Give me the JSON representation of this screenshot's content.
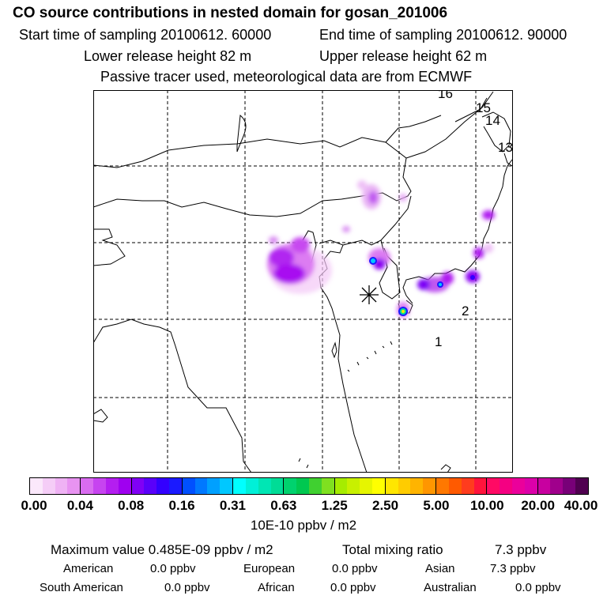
{
  "header": {
    "title": "CO  source contributions in nested domain for gosan_201006",
    "start_label": "Start time of sampling 20100612. 60000",
    "end_label": "End time of sampling 20100612. 90000",
    "lower_label": "Lower release height   82 m",
    "upper_label": "Upper release height   62 m",
    "note": "Passive tracer used, meteorological data are from ECMWF"
  },
  "map": {
    "region_labels": [
      "16",
      "15",
      "14",
      "13",
      "2",
      "1"
    ],
    "receptor_marker": "asterisk-icon"
  },
  "colorbar": {
    "ticks": [
      "0.00",
      "0.04",
      "0.08",
      "0.16",
      "0.31",
      "0.63",
      "1.25",
      "2.50",
      "5.00",
      "10.00",
      "20.00",
      "40.00"
    ],
    "unit": "10E-10 ppbv / m2",
    "colors": [
      [
        "#fbe8fb",
        "#f5cdf7",
        "#efb2f4",
        "#e893f1"
      ],
      [
        "#d96cf0",
        "#c744f0",
        "#b41ef0",
        "#9f00f0"
      ],
      [
        "#8000f5",
        "#5a00fa",
        "#3300ff",
        "#1a1aff"
      ],
      [
        "#0050ff",
        "#0078ff",
        "#00a0ff",
        "#00c8ff"
      ],
      [
        "#00ffff",
        "#00f0d8",
        "#00e6b4",
        "#00dc96"
      ],
      [
        "#00d26e",
        "#00c850",
        "#40d030",
        "#7fe020"
      ],
      [
        "#a6ec00",
        "#c8f000",
        "#e6f500",
        "#ffff00"
      ],
      [
        "#ffe600",
        "#ffcc00",
        "#ffb400",
        "#ff9600"
      ],
      [
        "#ff7800",
        "#ff5a00",
        "#ff3c1e",
        "#ff143c"
      ],
      [
        "#ff0a64",
        "#f50082",
        "#eb009b",
        "#dc00aa"
      ],
      [
        "#c800a0",
        "#a0008c",
        "#780078",
        "#500050"
      ]
    ]
  },
  "summary": {
    "max_label": "Maximum value  0.485E-09 ppbv / m2",
    "total_label": "Total mixing ratio",
    "total_value": "7.3 ppbv",
    "american_label": "American",
    "american_value": "0.0 ppbv",
    "european_label": "European",
    "european_value": "0.0 ppbv",
    "asian_label": "Asian",
    "asian_value": "7.3 ppbv",
    "south_american_label": "South American",
    "south_american_value": "0.0 ppbv",
    "african_label": "African",
    "african_value": "0.0 ppbv",
    "australian_label": "Australian",
    "australian_value": "0.0 ppbv"
  }
}
